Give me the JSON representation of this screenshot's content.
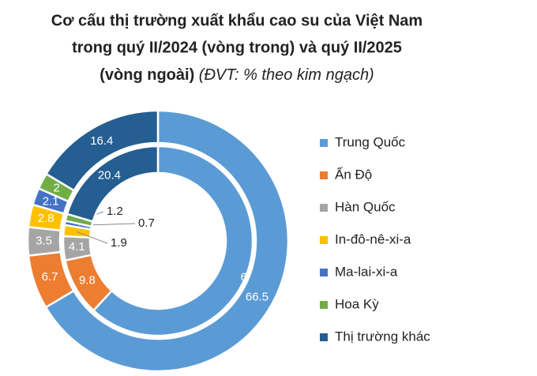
{
  "chart_data": {
    "type": "donut",
    "title": [
      "Cơ cấu thị trường xuất khẩu cao su của Việt Nam",
      "trong quý II/2024 (vòng trong) và quý II/2025",
      "(vòng ngoài)"
    ],
    "unit": "(ĐVT: % theo kim ngạch)",
    "categories": [
      "Trung Quốc",
      "Ấn Độ",
      "Hàn Quốc",
      "In-đô-nê-xi-a",
      "Ma-lai-xi-a",
      "Hoa Kỳ",
      "Thị trường khác"
    ],
    "colors": [
      "#5b9bd5",
      "#ed7d31",
      "#a5a5a5",
      "#ffc000",
      "#4472c4",
      "#70ad47",
      "#255e91"
    ],
    "series": [
      {
        "values": [
          61.9,
          9.8,
          4.1,
          1.9,
          0.7,
          1.2,
          20.4
        ]
      },
      {
        "values": [
          66.5,
          6.7,
          3.5,
          2.8,
          2.1,
          2.0,
          16.4
        ]
      }
    ],
    "legend": "right"
  }
}
